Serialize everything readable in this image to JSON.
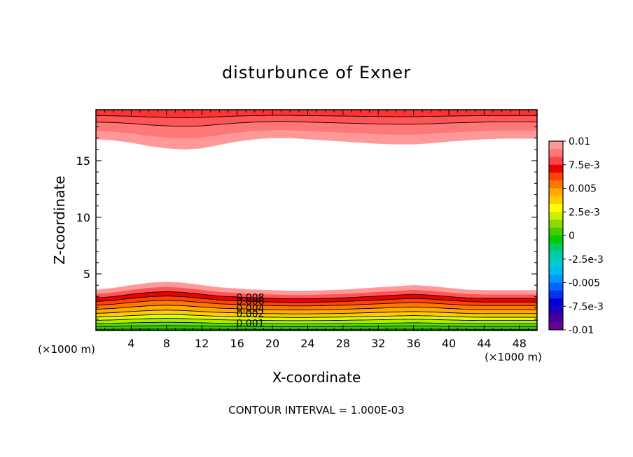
{
  "chart_data": {
    "type": "heatmap",
    "title": "disturbunce of Exner",
    "xlabel": "X-coordinate",
    "ylabel": "Z-coordinate",
    "x_unit": "(×1000 m)",
    "z_unit": "(×1000 m)",
    "xlim": [
      0,
      50
    ],
    "ylim": [
      0,
      19.5
    ],
    "x_ticks": [
      4,
      8,
      12,
      16,
      20,
      24,
      28,
      32,
      36,
      40,
      44,
      48
    ],
    "x_tick_labels": [
      "4",
      "8",
      "12",
      "16",
      "20",
      "24",
      "28",
      "32",
      "36",
      "40",
      "44",
      "48"
    ],
    "y_ticks": [
      5,
      10,
      15
    ],
    "y_tick_labels": [
      "5",
      "10",
      "15"
    ],
    "contour_interval": "CONTOUR INTERVAL = 1.000E-03",
    "contour_labels": [
      "0.008",
      "0.006",
      "0.004",
      "0.002",
      "0.001"
    ],
    "colorbar": {
      "ticks": [
        "0.01",
        "7.5e-3",
        "0.005",
        "2.5e-3",
        "0",
        "-2.5e-3",
        "-0.005",
        "-7.5e-3",
        "-0.01"
      ],
      "colors": [
        "#ff9999",
        "#ff7777",
        "#ff4444",
        "#ee0000",
        "#ff4400",
        "#ff7700",
        "#ffaa00",
        "#ffcc00",
        "#ffff00",
        "#ccee00",
        "#88dd00",
        "#44cc00",
        "#00cc00",
        "#00cc66",
        "#00ccaa",
        "#00cccc",
        "#00bbee",
        "#0099ff",
        "#0066ff",
        "#0033ee",
        "#0000dd",
        "#2200bb",
        "#440099",
        "#660099"
      ]
    },
    "lower_band_x": [
      0,
      2,
      4,
      6,
      8,
      10,
      12,
      14,
      16,
      18,
      20,
      22,
      24,
      26,
      28,
      30,
      32,
      34,
      36,
      38,
      40,
      42,
      44,
      46,
      48,
      50
    ],
    "lower_band_top_z": [
      3.6,
      3.75,
      4.0,
      4.2,
      4.3,
      4.2,
      4.0,
      3.8,
      3.7,
      3.6,
      3.55,
      3.5,
      3.5,
      3.55,
      3.6,
      3.7,
      3.8,
      3.9,
      4.0,
      3.9,
      3.75,
      3.6,
      3.55,
      3.55,
      3.55,
      3.55
    ],
    "upper_band_x": [
      0,
      2,
      4,
      6,
      8,
      10,
      12,
      14,
      16,
      18,
      20,
      22,
      24,
      26,
      28,
      30,
      32,
      34,
      36,
      38,
      40,
      42,
      44,
      46,
      48,
      50
    ],
    "upper_band_bottom_z": [
      16.9,
      16.8,
      16.6,
      16.3,
      16.1,
      16.0,
      16.1,
      16.4,
      16.7,
      16.9,
      17.0,
      17.0,
      16.9,
      16.8,
      16.7,
      16.6,
      16.5,
      16.45,
      16.45,
      16.55,
      16.7,
      16.8,
      16.9,
      16.95,
      16.95,
      16.95
    ]
  }
}
